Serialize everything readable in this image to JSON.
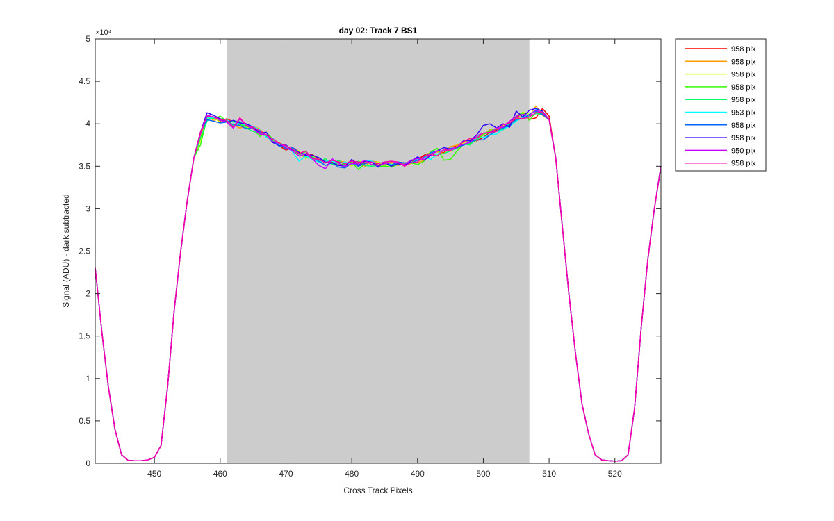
{
  "chart_data": {
    "type": "line",
    "title": "day 02: Track 7  BS1",
    "xlabel": "Cross Track Pixels",
    "ylabel": "Signal (ADU) - dark subtracted",
    "y_exponent_label": "×10⁴",
    "xlim": [
      441,
      527
    ],
    "ylim": [
      0,
      50000
    ],
    "x_ticks": [
      450,
      460,
      470,
      480,
      490,
      500,
      510,
      520
    ],
    "y_ticks": [
      0,
      5000,
      10000,
      15000,
      20000,
      25000,
      30000,
      35000,
      40000,
      45000,
      50000
    ],
    "y_tick_labels": [
      "0",
      "0.5",
      "1",
      "1.5",
      "2",
      "2.5",
      "3",
      "3.5",
      "4",
      "4.5",
      "5"
    ],
    "highlight_region": {
      "x": [
        461,
        507
      ],
      "color": "#cccccc"
    },
    "grid": false,
    "legend_position": "outside-top-right",
    "x": [
      441,
      442,
      443,
      444,
      445,
      446,
      447,
      448,
      449,
      450,
      451,
      452,
      453,
      454,
      455,
      456,
      457,
      458,
      459,
      460,
      461,
      462,
      463,
      464,
      465,
      466,
      467,
      468,
      469,
      470,
      471,
      472,
      473,
      474,
      475,
      476,
      477,
      478,
      479,
      480,
      481,
      482,
      483,
      484,
      485,
      486,
      487,
      488,
      489,
      490,
      491,
      492,
      493,
      494,
      495,
      496,
      497,
      498,
      499,
      500,
      501,
      502,
      503,
      504,
      505,
      506,
      507,
      508,
      509,
      510,
      511,
      512,
      513,
      514,
      515,
      516,
      517,
      518,
      519,
      520,
      521,
      522,
      523,
      524,
      525,
      526,
      527
    ],
    "base_values": [
      23000,
      15500,
      9000,
      4000,
      1000,
      350,
      300,
      300,
      400,
      700,
      2100,
      9000,
      18000,
      25000,
      31000,
      36000,
      39000,
      40800,
      40600,
      40400,
      40200,
      40000,
      39800,
      39700,
      39500,
      39200,
      38800,
      38200,
      37600,
      37200,
      36900,
      36600,
      36300,
      36000,
      35800,
      35600,
      35500,
      35400,
      35350,
      35300,
      35300,
      35300,
      35300,
      35300,
      35300,
      35300,
      35300,
      35300,
      35400,
      35600,
      35900,
      36200,
      36500,
      36800,
      37100,
      37400,
      37700,
      38000,
      38300,
      38600,
      38900,
      39200,
      39600,
      40000,
      40500,
      41000,
      41300,
      41500,
      41200,
      40500,
      36000,
      28000,
      20000,
      13000,
      7000,
      3500,
      1000,
      400,
      300,
      250,
      300,
      1000,
      6500,
      16000,
      24000,
      30000,
      35000
    ],
    "series": [
      {
        "name": "958 pix",
        "color": "#ff0000",
        "values": [
          23000,
          15500,
          9000,
          4000,
          1000,
          350,
          300,
          300,
          400,
          700,
          2100,
          9000,
          18000,
          25000,
          31000,
          36000,
          39000,
          40800,
          40700,
          40300,
          40600,
          40200,
          40000,
          39900,
          39600,
          39000,
          38600,
          38300,
          37400,
          36900,
          37200,
          36700,
          36200,
          36400,
          35800,
          35700,
          35500,
          35300,
          35100,
          35700,
          35000,
          35400,
          35600,
          35100,
          35500,
          35300,
          35500,
          35200,
          35600,
          35800,
          36300,
          36600,
          36700,
          36600,
          37300,
          37400,
          37900,
          38100,
          38000,
          38400,
          39000,
          39300,
          39600,
          39800,
          40700,
          41300,
          40500,
          40700,
          41800,
          40900,
          36000,
          28000,
          20000,
          13000,
          7000,
          3500,
          1000,
          400,
          300,
          250,
          300,
          1000,
          6500,
          16000,
          24000,
          30000,
          35000
        ]
      },
      {
        "name": "958 pix",
        "color": "#ff9900",
        "values": [
          23000,
          15500,
          9000,
          4000,
          1000,
          350,
          300,
          300,
          400,
          700,
          2100,
          9000,
          18000,
          25000,
          31000,
          36000,
          38500,
          40900,
          40400,
          40600,
          40300,
          39900,
          39500,
          39800,
          39700,
          39400,
          38600,
          38000,
          37800,
          37000,
          37200,
          36400,
          36000,
          36100,
          35500,
          35800,
          35300,
          35600,
          35500,
          35100,
          35500,
          35000,
          35600,
          35500,
          35200,
          35500,
          35100,
          35300,
          35600,
          35400,
          35700,
          36500,
          36700,
          36500,
          37300,
          37500,
          37800,
          38100,
          38200,
          38700,
          39300,
          39100,
          39600,
          40300,
          40600,
          40700,
          40900,
          42100,
          41000,
          40500,
          36000,
          28000,
          20000,
          13000,
          7000,
          3500,
          1000,
          400,
          300,
          250,
          300,
          1000,
          6500,
          16000,
          24000,
          30000,
          35000
        ]
      },
      {
        "name": "958 pix",
        "color": "#ccff00",
        "values": [
          23000,
          15500,
          9000,
          4000,
          1000,
          350,
          300,
          300,
          400,
          700,
          2100,
          9000,
          18000,
          25000,
          31000,
          36000,
          38000,
          40600,
          40700,
          40200,
          40500,
          39800,
          40100,
          39500,
          39700,
          39000,
          39000,
          38100,
          37400,
          37300,
          36900,
          36800,
          35900,
          36300,
          35600,
          35600,
          35600,
          35200,
          35500,
          35000,
          35600,
          35500,
          35200,
          35500,
          35000,
          35300,
          35300,
          35100,
          35300,
          35700,
          36100,
          36700,
          36200,
          37000,
          36700,
          37400,
          37700,
          38300,
          38400,
          38800,
          39200,
          39500,
          39800,
          40100,
          40300,
          41400,
          41100,
          41600,
          41300,
          40500,
          36000,
          28000,
          20000,
          13000,
          7000,
          3500,
          1000,
          400,
          300,
          250,
          300,
          1000,
          6500,
          16000,
          24000,
          30000,
          35000
        ]
      },
      {
        "name": "958 pix",
        "color": "#33ff00",
        "values": [
          23000,
          15500,
          9000,
          4000,
          1000,
          350,
          300,
          300,
          400,
          700,
          2100,
          9000,
          18000,
          25000,
          31000,
          36000,
          37500,
          40700,
          40600,
          40900,
          40300,
          40300,
          39900,
          39700,
          39500,
          38500,
          39000,
          38200,
          37700,
          37500,
          36700,
          36500,
          36700,
          35900,
          36000,
          35500,
          35600,
          35100,
          35300,
          35500,
          34600,
          35300,
          35500,
          35000,
          35000,
          34900,
          35200,
          35400,
          35400,
          35200,
          35600,
          36700,
          37100,
          35700,
          35800,
          36800,
          37600,
          37700,
          38100,
          38700,
          39200,
          39400,
          39400,
          40000,
          40900,
          41300,
          40400,
          41400,
          41200,
          40500,
          36000,
          28000,
          20000,
          13000,
          7000,
          3500,
          1000,
          400,
          300,
          250,
          300,
          1000,
          6500,
          16000,
          24000,
          30000,
          35000
        ]
      },
      {
        "name": "958 pix",
        "color": "#00ff66",
        "values": [
          23000,
          15500,
          9000,
          4000,
          1000,
          350,
          300,
          300,
          400,
          700,
          2100,
          9000,
          18000,
          25000,
          31000,
          36000,
          38300,
          40300,
          41000,
          40600,
          40500,
          39800,
          40300,
          39500,
          39100,
          38900,
          38500,
          38000,
          37500,
          37100,
          37100,
          36400,
          36100,
          36200,
          35500,
          35900,
          35200,
          35700,
          35100,
          35200,
          35600,
          35100,
          35000,
          35100,
          35300,
          35000,
          35400,
          35200,
          35700,
          35800,
          36000,
          36500,
          36400,
          36500,
          36800,
          37100,
          37600,
          37500,
          38400,
          38900,
          38900,
          39200,
          39300,
          40100,
          40400,
          40700,
          40900,
          41200,
          41100,
          40500,
          36000,
          28000,
          20000,
          13000,
          7000,
          3500,
          1000,
          400,
          300,
          250,
          300,
          1000,
          6500,
          16000,
          24000,
          30000,
          35000
        ]
      },
      {
        "name": "953 pix",
        "color": "#00ffff",
        "values": [
          23000,
          15500,
          9000,
          4000,
          1000,
          350,
          300,
          300,
          400,
          700,
          2100,
          9000,
          18000,
          25000,
          31000,
          36000,
          39000,
          40700,
          40700,
          40400,
          40400,
          40200,
          40000,
          39900,
          39700,
          39300,
          38400,
          38300,
          37300,
          37300,
          36700,
          35600,
          36200,
          35800,
          35500,
          35600,
          35600,
          35300,
          35500,
          35200,
          35300,
          35700,
          35600,
          35300,
          35500,
          35200,
          35300,
          35200,
          35400,
          35800,
          36100,
          35800,
          36400,
          36900,
          36800,
          37200,
          37500,
          37800,
          38300,
          38400,
          38700,
          38800,
          39400,
          39700,
          40300,
          40800,
          41000,
          41700,
          41500,
          40500,
          36000,
          28000,
          20000,
          13000,
          7000,
          3500,
          1000,
          400,
          300,
          250,
          300,
          1000,
          6500,
          16000,
          24000,
          30000,
          35000
        ]
      },
      {
        "name": "958 pix",
        "color": "#0066ff",
        "values": [
          23000,
          15500,
          9000,
          4000,
          1000,
          350,
          300,
          300,
          400,
          700,
          2100,
          9000,
          18000,
          25000,
          31000,
          36000,
          39000,
          40500,
          40300,
          40100,
          40200,
          39900,
          39800,
          39400,
          39600,
          39100,
          38700,
          37800,
          37700,
          37000,
          37200,
          36600,
          36400,
          36000,
          35600,
          35100,
          35400,
          34900,
          34800,
          35400,
          35000,
          35300,
          35500,
          35000,
          35400,
          35100,
          35500,
          35400,
          35400,
          35700,
          36100,
          36600,
          36800,
          36800,
          37100,
          37200,
          37500,
          37900,
          38100,
          38100,
          38700,
          39200,
          39500,
          39900,
          40500,
          40600,
          41100,
          41500,
          41100,
          40500,
          36000,
          28000,
          20000,
          13000,
          7000,
          3500,
          1000,
          400,
          300,
          250,
          300,
          1000,
          6500,
          16000,
          24000,
          30000,
          35000
        ]
      },
      {
        "name": "958 pix",
        "color": "#3300ff",
        "values": [
          23000,
          15500,
          9000,
          4000,
          1000,
          350,
          300,
          300,
          400,
          700,
          2100,
          9000,
          18000,
          25000,
          31000,
          36000,
          39000,
          41300,
          41000,
          40600,
          40200,
          40400,
          40100,
          40000,
          39600,
          38900,
          39000,
          37800,
          37400,
          37500,
          36900,
          36600,
          36300,
          36300,
          36000,
          35500,
          35400,
          35100,
          35000,
          35800,
          35100,
          35600,
          35500,
          34900,
          35500,
          35000,
          35300,
          35100,
          35600,
          36100,
          35700,
          36300,
          36800,
          37200,
          37000,
          37200,
          38000,
          38000,
          38700,
          39800,
          40000,
          39500,
          40000,
          39600,
          41500,
          40800,
          41600,
          41800,
          41500,
          40500,
          36000,
          28000,
          20000,
          13000,
          7000,
          3500,
          1000,
          400,
          300,
          250,
          300,
          1000,
          6500,
          16000,
          24000,
          30000,
          35000
        ]
      },
      {
        "name": "950 pix",
        "color": "#cc00ff",
        "values": [
          23000,
          15500,
          9000,
          4000,
          1000,
          350,
          300,
          300,
          400,
          700,
          2100,
          9000,
          18000,
          25000,
          31000,
          36000,
          38800,
          41000,
          40800,
          40400,
          40200,
          39500,
          40600,
          39800,
          39400,
          38800,
          38700,
          37900,
          37700,
          37200,
          36800,
          36200,
          36500,
          35900,
          35100,
          34700,
          35900,
          35300,
          35000,
          35300,
          35300,
          35700,
          35200,
          35100,
          35300,
          35400,
          35400,
          35200,
          35700,
          35900,
          35800,
          36400,
          36800,
          36800,
          37000,
          37300,
          37600,
          37800,
          38600,
          38900,
          39000,
          39500,
          39600,
          40300,
          40900,
          41100,
          41000,
          41600,
          41300,
          40500,
          36000,
          28000,
          20000,
          13000,
          7000,
          3500,
          1000,
          400,
          300,
          250,
          300,
          1000,
          6500,
          16000,
          24000,
          30000,
          35000
        ]
      },
      {
        "name": "958 pix",
        "color": "#ff00aa",
        "values": [
          23000,
          15500,
          9000,
          4000,
          1000,
          350,
          300,
          300,
          400,
          700,
          2100,
          9000,
          18000,
          25000,
          31000,
          36000,
          39000,
          40900,
          40800,
          40500,
          40400,
          39600,
          40700,
          39800,
          39600,
          39200,
          38700,
          38200,
          37700,
          37400,
          37000,
          36500,
          36800,
          35900,
          35800,
          35400,
          35700,
          35500,
          35300,
          35600,
          35500,
          35400,
          35500,
          35300,
          35500,
          35600,
          35500,
          35000,
          35400,
          35500,
          36200,
          36400,
          36200,
          37000,
          36800,
          37300,
          37900,
          38300,
          38300,
          38900,
          39000,
          39100,
          39900,
          40100,
          40700,
          40600,
          40800,
          41300,
          41400,
          40500,
          36000,
          28000,
          20000,
          13000,
          7000,
          3500,
          1000,
          400,
          300,
          250,
          300,
          1000,
          6500,
          16000,
          24000,
          30000,
          35000
        ]
      }
    ]
  }
}
